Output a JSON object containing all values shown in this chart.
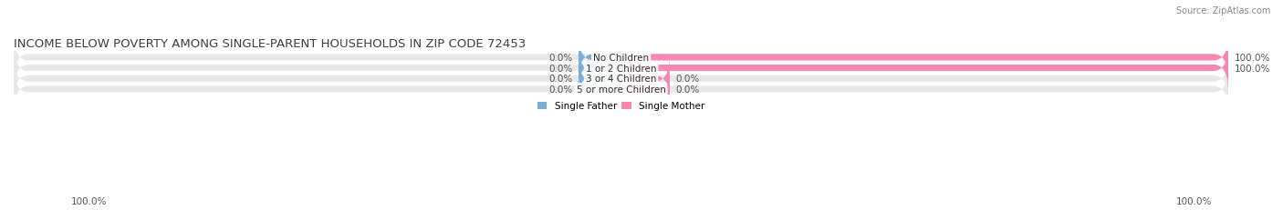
{
  "title": "INCOME BELOW POVERTY AMONG SINGLE-PARENT HOUSEHOLDS IN ZIP CODE 72453",
  "source": "Source: ZipAtlas.com",
  "categories": [
    "No Children",
    "1 or 2 Children",
    "3 or 4 Children",
    "5 or more Children"
  ],
  "father_values": [
    0.0,
    0.0,
    0.0,
    0.0
  ],
  "mother_values": [
    100.0,
    100.0,
    0.0,
    0.0
  ],
  "father_color": "#7bafd4",
  "mother_color": "#f687b0",
  "bar_bg_color": "#e8e8e8",
  "bar_height": 0.6,
  "title_fontsize": 9.5,
  "label_fontsize": 7.5,
  "cat_fontsize": 7.5,
  "axis_label_left": "100.0%",
  "axis_label_right": "100.0%",
  "father_stub": 7,
  "mother_stub": 8,
  "figsize": [
    14.06,
    2.32
  ],
  "dpi": 100
}
